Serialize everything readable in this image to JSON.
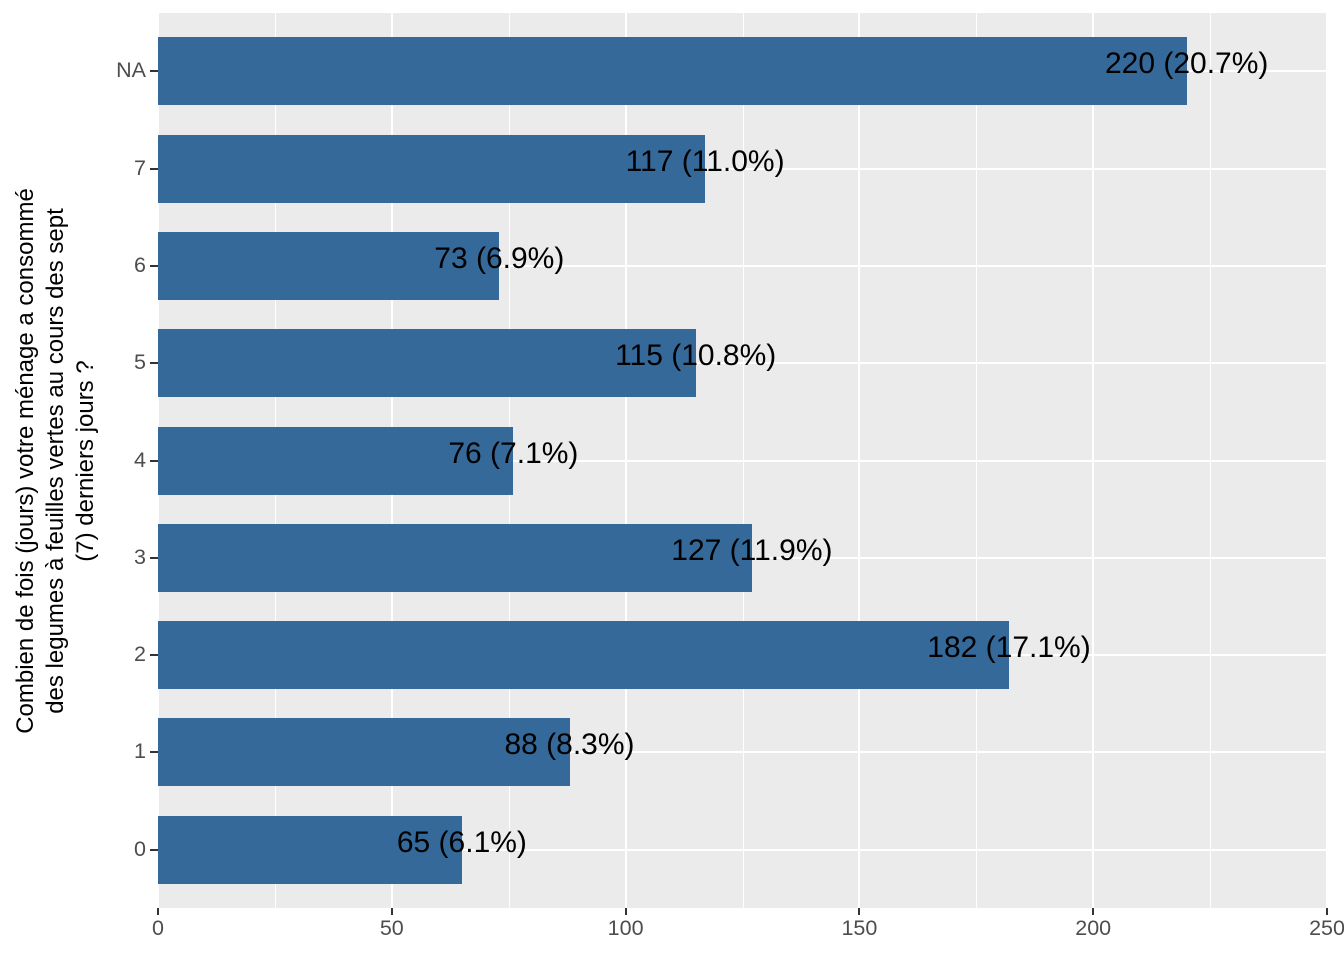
{
  "chart_data": {
    "type": "bar",
    "orientation": "horizontal",
    "ylabel_lines": [
      "Combien de fois (jours) votre ménage a consommé",
      "des legumes à feuilles vertes au cours des sept",
      "(7) derniers jours ?"
    ],
    "xlabel": "",
    "categories": [
      "NA",
      "7",
      "6",
      "5",
      "4",
      "3",
      "2",
      "1",
      "0"
    ],
    "values": [
      220,
      117,
      73,
      115,
      76,
      127,
      182,
      88,
      65
    ],
    "percents": [
      20.7,
      11.0,
      6.9,
      10.8,
      7.1,
      11.9,
      17.1,
      8.3,
      6.1
    ],
    "bar_labels": [
      "220 (20.7%)",
      "117 (11.0%)",
      "73 (6.9%)",
      "115 (10.8%)",
      "76 (7.1%)",
      "127 (11.9%)",
      "182 (17.1%)",
      "88 (8.3%)",
      "65 (6.1%)"
    ],
    "xlim": [
      0,
      250
    ],
    "x_major_ticks": [
      0,
      50,
      100,
      150,
      200,
      250
    ],
    "x_minor_gridlines": [
      25,
      75,
      125,
      175,
      225
    ],
    "grid": true,
    "legend": false,
    "colors": {
      "bar": "#34699A",
      "panel_bg": "#EBEBEB",
      "grid": "#FFFFFF",
      "tick_label": "#4D4D4D",
      "tick_mark": "#333333",
      "axis_title": "#000000",
      "bar_label": "#000000",
      "background": "#FFFFFF"
    }
  }
}
